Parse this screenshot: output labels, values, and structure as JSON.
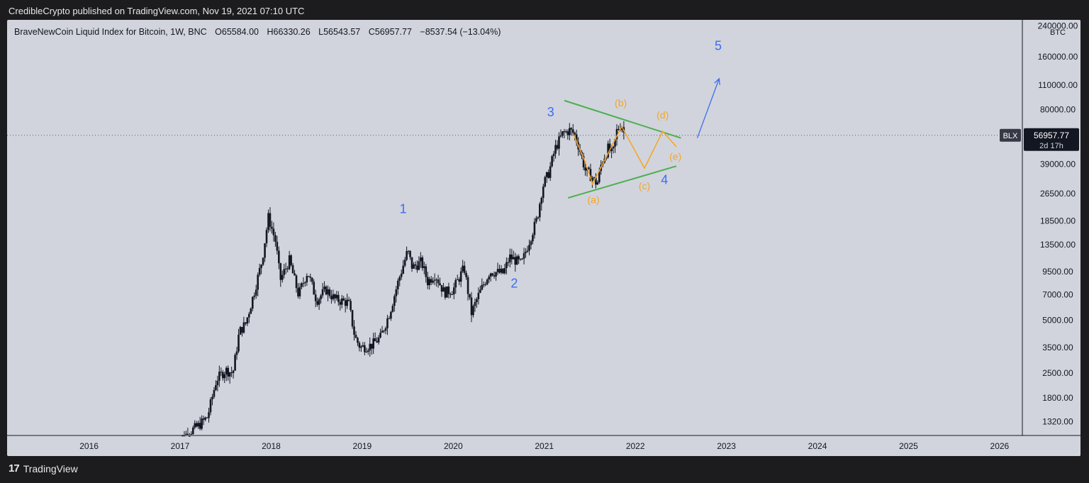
{
  "header": {
    "publisher": "CredibleCrypto published on TradingView.com, Nov 19, 2021 07:10 UTC"
  },
  "legend": {
    "symbol_desc": "BraveNewCoin Liquid Index for Bitcoin, 1W, BNC",
    "o_label": "O",
    "o_value": "65584.00",
    "h_label": "H",
    "h_value": "66330.26",
    "l_label": "L",
    "l_value": "56543.57",
    "c_label": "C",
    "c_value": "56957.77",
    "change": "−8537.54 (−13.04%)"
  },
  "footer": {
    "logo_mark": "17",
    "brand": "TradingView"
  },
  "chart_data": {
    "type": "candlestick",
    "symbol": "BLX",
    "interval": "1W",
    "yscale": "log",
    "ylim": [
      1100,
      260000
    ],
    "xlim": [
      2015.1,
      2026.25
    ],
    "currency_label": "BTC",
    "y_ticks": [
      "1320.00",
      "1800.00",
      "2500.00",
      "3500.00",
      "5000.00",
      "7000.00",
      "9500.00",
      "13500.00",
      "18500.00",
      "26500.00",
      "39000.00",
      "80000.00",
      "110000.00",
      "160000.00",
      "240000.00"
    ],
    "x_ticks": [
      "2016",
      "2017",
      "2018",
      "2019",
      "2020",
      "2021",
      "2022",
      "2023",
      "2024",
      "2025",
      "2026"
    ],
    "last_price": {
      "label": "BLX",
      "value": "56957.77",
      "countdown": "2d 17h",
      "price": 56957.77
    },
    "price_path": [
      [
        2016.95,
        1000
      ],
      [
        2017.1,
        1150
      ],
      [
        2017.2,
        1250
      ],
      [
        2017.3,
        1400
      ],
      [
        2017.4,
        2300
      ],
      [
        2017.5,
        2600
      ],
      [
        2017.58,
        2500
      ],
      [
        2017.65,
        4300
      ],
      [
        2017.72,
        4800
      ],
      [
        2017.8,
        6800
      ],
      [
        2017.9,
        11000
      ],
      [
        2017.97,
        19500
      ],
      [
        2018.05,
        14000
      ],
      [
        2018.1,
        8500
      ],
      [
        2018.2,
        11000
      ],
      [
        2018.3,
        7000
      ],
      [
        2018.4,
        9500
      ],
      [
        2018.5,
        6500
      ],
      [
        2018.6,
        7500
      ],
      [
        2018.7,
        6600
      ],
      [
        2018.85,
        6300
      ],
      [
        2018.92,
        4000
      ],
      [
        2018.98,
        3500
      ],
      [
        2019.1,
        3600
      ],
      [
        2019.2,
        4000
      ],
      [
        2019.3,
        5500
      ],
      [
        2019.4,
        8500
      ],
      [
        2019.5,
        12500
      ],
      [
        2019.55,
        10000
      ],
      [
        2019.65,
        10800
      ],
      [
        2019.72,
        8300
      ],
      [
        2019.8,
        9200
      ],
      [
        2019.9,
        7200
      ],
      [
        2020.0,
        7500
      ],
      [
        2020.12,
        10000
      ],
      [
        2020.2,
        5500
      ],
      [
        2020.28,
        7000
      ],
      [
        2020.4,
        9500
      ],
      [
        2020.55,
        9300
      ],
      [
        2020.62,
        11500
      ],
      [
        2020.75,
        10500
      ],
      [
        2020.85,
        15000
      ],
      [
        2020.92,
        19000
      ],
      [
        2020.98,
        29000
      ],
      [
        2021.05,
        35000
      ],
      [
        2021.12,
        48000
      ],
      [
        2021.2,
        58000
      ],
      [
        2021.28,
        61000
      ],
      [
        2021.33,
        58000
      ],
      [
        2021.38,
        49000
      ],
      [
        2021.45,
        36000
      ],
      [
        2021.52,
        33000
      ],
      [
        2021.58,
        30000
      ],
      [
        2021.63,
        40000
      ],
      [
        2021.7,
        48000
      ],
      [
        2021.75,
        44000
      ],
      [
        2021.8,
        62000
      ],
      [
        2021.85,
        66000
      ],
      [
        2021.88,
        57000
      ]
    ],
    "trendlines": [
      {
        "name": "upper",
        "from": [
          2021.22,
          90000
        ],
        "to": [
          2022.5,
          55000
        ]
      },
      {
        "name": "lower",
        "from": [
          2021.26,
          25000
        ],
        "to": [
          2022.45,
          38000
        ]
      }
    ],
    "projection_path": [
      [
        2021.32,
        58000
      ],
      [
        2021.45,
        40000
      ],
      [
        2021.53,
        30000
      ],
      [
        2021.85,
        64000
      ],
      [
        2022.1,
        37000
      ],
      [
        2022.3,
        60000
      ],
      [
        2022.45,
        49000
      ]
    ],
    "arrow": {
      "from": [
        2022.68,
        55000
      ],
      "to": [
        2022.92,
        120000
      ]
    },
    "wave_labels": [
      {
        "text": "1",
        "x": 2019.45,
        "y": 20500,
        "color": "#3d6df0"
      },
      {
        "text": "2",
        "x": 2020.67,
        "y": 7700,
        "color": "#3d6df0"
      },
      {
        "text": "3",
        "x": 2021.07,
        "y": 73000,
        "color": "#3d6df0"
      },
      {
        "text": "4",
        "x": 2022.32,
        "y": 30000,
        "color": "#3d6df0"
      },
      {
        "text": "5",
        "x": 2022.91,
        "y": 175000,
        "color": "#3d6df0"
      }
    ],
    "sub_labels": [
      {
        "text": "(a)",
        "x": 2021.54,
        "y": 23300
      },
      {
        "text": "(b)",
        "x": 2021.84,
        "y": 83500
      },
      {
        "text": "(c)",
        "x": 2022.1,
        "y": 28000
      },
      {
        "text": "(d)",
        "x": 2022.3,
        "y": 71000
      },
      {
        "text": "(e)",
        "x": 2022.44,
        "y": 41300
      }
    ],
    "colors": {
      "candle": "#131722",
      "trendline": "#4caf50",
      "projection": "#f5a524",
      "wave": "#3d6df0",
      "arrow": "#3d6df0",
      "background": "#d1d4dc"
    }
  }
}
